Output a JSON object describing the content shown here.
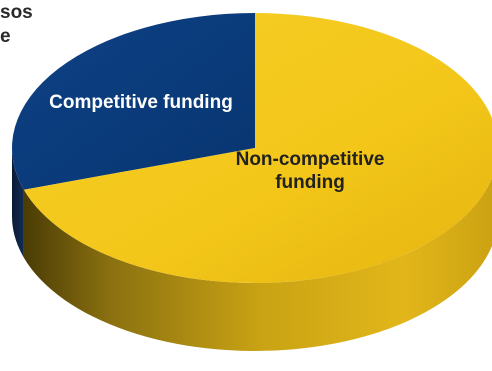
{
  "title_fragments": [
    "sos",
    "e"
  ],
  "chart_data": {
    "type": "pie",
    "style": "3d",
    "title": "",
    "slices": [
      {
        "label": "Competitive funding",
        "value": 30,
        "color": "#0b3c7d"
      },
      {
        "label": "Non-competitive funding",
        "label_lines": [
          "Non-competitive",
          "funding"
        ],
        "value": 70,
        "color": "#f3c619"
      }
    ],
    "label_colors": {
      "Competitive funding": "#ffffff",
      "Non-competitive funding": "#222222"
    },
    "start": "12 o'clock",
    "direction": "counter-clockwise for Competitive funding",
    "legend": "none, labels on slices"
  }
}
